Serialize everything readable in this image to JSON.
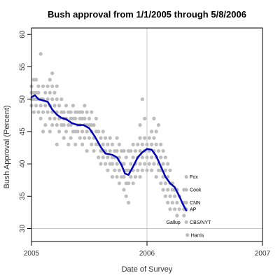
{
  "chart_data": {
    "type": "scatter",
    "title": "Bush approval from 1/1/2005 through 5/8/2006",
    "xlabel": "Date of Survey",
    "ylabel": "Bush Approval (Percent)",
    "xlim": [
      2005.0,
      2007.0
    ],
    "ylim": [
      28.0,
      61.0
    ],
    "x_ticks": [
      2005,
      2006,
      2007
    ],
    "x_tick_labels": [
      "2005",
      "2006",
      "2007"
    ],
    "y_ticks": [
      30,
      35,
      40,
      45,
      50,
      55,
      60
    ],
    "y_tick_labels": [
      "30",
      "35",
      "40",
      "45",
      "50",
      "55",
      "60"
    ],
    "grid": false,
    "reference_lines": {
      "vertical_x": 2006.0,
      "horizontal_y": 30
    },
    "colors": {
      "points": "#bdbdbd",
      "trend": "#0000bb",
      "reference": "#c8c8c8"
    },
    "points": [
      [
        2005.0,
        49
      ],
      [
        2005.0,
        50
      ],
      [
        2005.0,
        51
      ],
      [
        2005.0,
        52
      ],
      [
        2005.02,
        48
      ],
      [
        2005.02,
        50
      ],
      [
        2005.02,
        51
      ],
      [
        2005.02,
        53
      ],
      [
        2005.04,
        49
      ],
      [
        2005.04,
        50
      ],
      [
        2005.04,
        51
      ],
      [
        2005.04,
        53
      ],
      [
        2005.06,
        48
      ],
      [
        2005.06,
        50
      ],
      [
        2005.06,
        51
      ],
      [
        2005.06,
        52
      ],
      [
        2005.08,
        47
      ],
      [
        2005.08,
        49
      ],
      [
        2005.08,
        50
      ],
      [
        2005.08,
        57
      ],
      [
        2005.1,
        45
      ],
      [
        2005.1,
        48
      ],
      [
        2005.1,
        50
      ],
      [
        2005.1,
        52
      ],
      [
        2005.12,
        46
      ],
      [
        2005.12,
        49
      ],
      [
        2005.12,
        51
      ],
      [
        2005.14,
        48
      ],
      [
        2005.14,
        50
      ],
      [
        2005.14,
        52
      ],
      [
        2005.16,
        45
      ],
      [
        2005.16,
        47
      ],
      [
        2005.16,
        49
      ],
      [
        2005.16,
        51
      ],
      [
        2005.16,
        53
      ],
      [
        2005.18,
        46
      ],
      [
        2005.18,
        48
      ],
      [
        2005.18,
        50
      ],
      [
        2005.18,
        52
      ],
      [
        2005.18,
        54
      ],
      [
        2005.2,
        47
      ],
      [
        2005.2,
        49
      ],
      [
        2005.2,
        51
      ],
      [
        2005.22,
        43
      ],
      [
        2005.22,
        46
      ],
      [
        2005.22,
        48
      ],
      [
        2005.22,
        50
      ],
      [
        2005.22,
        52
      ],
      [
        2005.24,
        45
      ],
      [
        2005.24,
        47
      ],
      [
        2005.24,
        49
      ],
      [
        2005.26,
        46
      ],
      [
        2005.26,
        48
      ],
      [
        2005.26,
        50
      ],
      [
        2005.28,
        44
      ],
      [
        2005.28,
        46
      ],
      [
        2005.28,
        47
      ],
      [
        2005.28,
        48
      ],
      [
        2005.3,
        45
      ],
      [
        2005.3,
        47
      ],
      [
        2005.3,
        49
      ],
      [
        2005.32,
        43
      ],
      [
        2005.32,
        46
      ],
      [
        2005.32,
        48
      ],
      [
        2005.34,
        44
      ],
      [
        2005.34,
        46
      ],
      [
        2005.34,
        47
      ],
      [
        2005.34,
        48
      ],
      [
        2005.36,
        45
      ],
      [
        2005.36,
        47
      ],
      [
        2005.36,
        49
      ],
      [
        2005.38,
        43
      ],
      [
        2005.38,
        45
      ],
      [
        2005.38,
        47
      ],
      [
        2005.38,
        48
      ],
      [
        2005.4,
        45
      ],
      [
        2005.4,
        46
      ],
      [
        2005.4,
        48
      ],
      [
        2005.42,
        44
      ],
      [
        2005.42,
        46
      ],
      [
        2005.42,
        47
      ],
      [
        2005.42,
        48
      ],
      [
        2005.44,
        43
      ],
      [
        2005.44,
        45
      ],
      [
        2005.44,
        47
      ],
      [
        2005.44,
        48
      ],
      [
        2005.46,
        44
      ],
      [
        2005.46,
        46
      ],
      [
        2005.46,
        47
      ],
      [
        2005.46,
        49
      ],
      [
        2005.48,
        42
      ],
      [
        2005.48,
        45
      ],
      [
        2005.48,
        46
      ],
      [
        2005.48,
        48
      ],
      [
        2005.5,
        44
      ],
      [
        2005.5,
        46
      ],
      [
        2005.5,
        47
      ],
      [
        2005.52,
        43
      ],
      [
        2005.52,
        45
      ],
      [
        2005.52,
        46
      ],
      [
        2005.52,
        48
      ],
      [
        2005.54,
        42
      ],
      [
        2005.54,
        44
      ],
      [
        2005.54,
        46
      ],
      [
        2005.56,
        43
      ],
      [
        2005.56,
        45
      ],
      [
        2005.56,
        47
      ],
      [
        2005.58,
        41
      ],
      [
        2005.58,
        43
      ],
      [
        2005.58,
        45
      ],
      [
        2005.6,
        40
      ],
      [
        2005.6,
        42
      ],
      [
        2005.6,
        44
      ],
      [
        2005.62,
        41
      ],
      [
        2005.62,
        42
      ],
      [
        2005.62,
        43
      ],
      [
        2005.62,
        45
      ],
      [
        2005.64,
        40
      ],
      [
        2005.64,
        42
      ],
      [
        2005.64,
        44
      ],
      [
        2005.66,
        39
      ],
      [
        2005.66,
        41
      ],
      [
        2005.66,
        43
      ],
      [
        2005.68,
        40
      ],
      [
        2005.68,
        42
      ],
      [
        2005.68,
        44
      ],
      [
        2005.7,
        38
      ],
      [
        2005.7,
        40
      ],
      [
        2005.7,
        41
      ],
      [
        2005.7,
        43
      ],
      [
        2005.72,
        39
      ],
      [
        2005.72,
        41
      ],
      [
        2005.72,
        42
      ],
      [
        2005.74,
        38
      ],
      [
        2005.74,
        40
      ],
      [
        2005.74,
        42
      ],
      [
        2005.74,
        44
      ],
      [
        2005.76,
        37
      ],
      [
        2005.76,
        39
      ],
      [
        2005.76,
        41
      ],
      [
        2005.76,
        43
      ],
      [
        2005.78,
        38
      ],
      [
        2005.78,
        40
      ],
      [
        2005.78,
        42
      ],
      [
        2005.8,
        36
      ],
      [
        2005.8,
        38
      ],
      [
        2005.8,
        40
      ],
      [
        2005.8,
        42
      ],
      [
        2005.82,
        35
      ],
      [
        2005.82,
        37
      ],
      [
        2005.82,
        39
      ],
      [
        2005.82,
        41
      ],
      [
        2005.84,
        34
      ],
      [
        2005.84,
        37
      ],
      [
        2005.84,
        39
      ],
      [
        2005.84,
        42
      ],
      [
        2005.86,
        38
      ],
      [
        2005.86,
        40
      ],
      [
        2005.86,
        42
      ],
      [
        2005.88,
        37
      ],
      [
        2005.88,
        39
      ],
      [
        2005.88,
        41
      ],
      [
        2005.88,
        43
      ],
      [
        2005.9,
        38
      ],
      [
        2005.9,
        40
      ],
      [
        2005.9,
        42
      ],
      [
        2005.92,
        39
      ],
      [
        2005.92,
        41
      ],
      [
        2005.92,
        43
      ],
      [
        2005.94,
        38
      ],
      [
        2005.94,
        40
      ],
      [
        2005.94,
        42
      ],
      [
        2005.94,
        44
      ],
      [
        2005.94,
        46
      ],
      [
        2005.96,
        39
      ],
      [
        2005.96,
        41
      ],
      [
        2005.96,
        43
      ],
      [
        2005.96,
        50
      ],
      [
        2005.98,
        40
      ],
      [
        2005.98,
        42
      ],
      [
        2005.98,
        44
      ],
      [
        2005.98,
        47
      ],
      [
        2006.0,
        39
      ],
      [
        2006.0,
        41
      ],
      [
        2006.0,
        43
      ],
      [
        2006.02,
        40
      ],
      [
        2006.02,
        42
      ],
      [
        2006.02,
        44
      ],
      [
        2006.04,
        39
      ],
      [
        2006.04,
        41
      ],
      [
        2006.04,
        43
      ],
      [
        2006.04,
        45
      ],
      [
        2006.06,
        40
      ],
      [
        2006.06,
        42
      ],
      [
        2006.06,
        44
      ],
      [
        2006.06,
        47
      ],
      [
        2006.08,
        38
      ],
      [
        2006.08,
        41
      ],
      [
        2006.08,
        43
      ],
      [
        2006.08,
        45
      ],
      [
        2006.1,
        39
      ],
      [
        2006.1,
        40
      ],
      [
        2006.1,
        42
      ],
      [
        2006.1,
        46
      ],
      [
        2006.12,
        37
      ],
      [
        2006.12,
        39
      ],
      [
        2006.12,
        41
      ],
      [
        2006.12,
        43
      ],
      [
        2006.14,
        36
      ],
      [
        2006.14,
        38
      ],
      [
        2006.14,
        40
      ],
      [
        2006.14,
        42
      ],
      [
        2006.16,
        35
      ],
      [
        2006.16,
        37
      ],
      [
        2006.16,
        39
      ],
      [
        2006.16,
        41
      ],
      [
        2006.18,
        34
      ],
      [
        2006.18,
        36
      ],
      [
        2006.18,
        38
      ],
      [
        2006.18,
        40
      ],
      [
        2006.2,
        33
      ],
      [
        2006.2,
        35
      ],
      [
        2006.2,
        37
      ],
      [
        2006.2,
        39
      ],
      [
        2006.22,
        34
      ],
      [
        2006.22,
        36
      ],
      [
        2006.22,
        37
      ],
      [
        2006.24,
        33
      ],
      [
        2006.24,
        35
      ],
      [
        2006.24,
        36
      ],
      [
        2006.26,
        32
      ],
      [
        2006.26,
        34
      ],
      [
        2006.26,
        36
      ],
      [
        2006.28,
        33
      ],
      [
        2006.28,
        35
      ],
      [
        2006.32,
        36
      ],
      [
        2006.32,
        34
      ],
      [
        2006.32,
        33
      ],
      [
        2006.32,
        32
      ],
      [
        2006.34,
        38
      ],
      [
        2006.34,
        36
      ],
      [
        2006.34,
        34
      ],
      [
        2006.34,
        33
      ],
      [
        2006.34,
        31
      ],
      [
        2006.35,
        29
      ]
    ],
    "trend": [
      [
        2005.0,
        50.3
      ],
      [
        2005.03,
        50.6
      ],
      [
        2005.06,
        50.0
      ],
      [
        2005.1,
        49.8
      ],
      [
        2005.14,
        49.6
      ],
      [
        2005.18,
        48.4
      ],
      [
        2005.22,
        47.6
      ],
      [
        2005.26,
        47.1
      ],
      [
        2005.3,
        46.9
      ],
      [
        2005.35,
        46.3
      ],
      [
        2005.4,
        46.0
      ],
      [
        2005.45,
        46.0
      ],
      [
        2005.5,
        45.5
      ],
      [
        2005.55,
        44.2
      ],
      [
        2005.6,
        42.6
      ],
      [
        2005.64,
        41.6
      ],
      [
        2005.7,
        41.4
      ],
      [
        2005.74,
        41.0
      ],
      [
        2005.78,
        39.8
      ],
      [
        2005.81,
        38.5
      ],
      [
        2005.84,
        38.3
      ],
      [
        2005.88,
        39.6
      ],
      [
        2005.92,
        41.0
      ],
      [
        2005.96,
        41.8
      ],
      [
        2006.0,
        42.3
      ],
      [
        2006.04,
        42.2
      ],
      [
        2006.08,
        41.2
      ],
      [
        2006.12,
        39.6
      ],
      [
        2006.16,
        38.0
      ],
      [
        2006.2,
        37.0
      ],
      [
        2006.24,
        36.4
      ],
      [
        2006.28,
        35.0
      ],
      [
        2006.31,
        33.8
      ],
      [
        2006.34,
        32.8
      ]
    ],
    "annotations": [
      {
        "label": "Fox",
        "x": 2006.34,
        "y": 38
      },
      {
        "label": "Cook",
        "x": 2006.34,
        "y": 36
      },
      {
        "label": "CNN",
        "x": 2006.34,
        "y": 34
      },
      {
        "label": "AP",
        "x": 2006.34,
        "y": 33
      },
      {
        "label": "Gallup",
        "x": 2006.32,
        "y": 31,
        "align": "left"
      },
      {
        "label": "CBS/NYT",
        "x": 2006.34,
        "y": 31
      },
      {
        "label": "Harris",
        "x": 2006.35,
        "y": 29
      }
    ]
  }
}
